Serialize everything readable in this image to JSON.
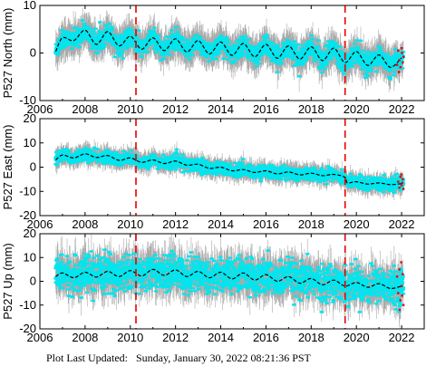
{
  "footer": {
    "label": "Plot Last Updated:",
    "timestamp": "Sunday, January 30, 2022 08:21:36 PST"
  },
  "colors": {
    "errorbar": "#aaaaaa",
    "data": "#00e5ee",
    "model": "#000000",
    "event_line": "#e60000",
    "recent_points": "#e60000"
  },
  "chart_data": [
    {
      "type": "scatter",
      "station": "P527",
      "component": "North",
      "ylabel": "P527 North (mm)",
      "xlim": [
        2006,
        2023
      ],
      "ylim": [
        -10,
        10
      ],
      "x_ticks": [
        2006,
        2008,
        2010,
        2012,
        2014,
        2016,
        2018,
        2020,
        2022
      ],
      "y_ticks": [
        -10,
        0,
        10
      ],
      "x_tick_labels": [
        "2006",
        "2008",
        "2010",
        "2012",
        "2014",
        "2016",
        "2018",
        "2020",
        "2022"
      ],
      "y_tick_labels": [
        "-10",
        "0",
        "10"
      ],
      "data_start": 2006.7,
      "data_end": 2022.08,
      "event_lines": [
        2010.25,
        2019.5
      ],
      "model_points": [
        [
          2006.7,
          0.3
        ],
        [
          2007.0,
          3.2
        ],
        [
          2007.5,
          2.6
        ],
        [
          2008.0,
          4.8
        ],
        [
          2008.5,
          1.8
        ],
        [
          2009.0,
          4.5
        ],
        [
          2009.5,
          1.5
        ],
        [
          2010.0,
          3.5
        ],
        [
          2010.5,
          0.8
        ],
        [
          2011.0,
          3.2
        ],
        [
          2011.5,
          0.5
        ],
        [
          2012.0,
          3.0
        ],
        [
          2012.5,
          0.2
        ],
        [
          2013.0,
          2.6
        ],
        [
          2013.5,
          -0.2
        ],
        [
          2014.0,
          2.3
        ],
        [
          2014.5,
          -0.5
        ],
        [
          2015.0,
          2.0
        ],
        [
          2015.5,
          -0.8
        ],
        [
          2016.0,
          1.8
        ],
        [
          2016.5,
          -1.1
        ],
        [
          2017.0,
          1.5
        ],
        [
          2017.5,
          -1.3
        ],
        [
          2018.0,
          1.3
        ],
        [
          2018.5,
          -1.6
        ],
        [
          2019.0,
          1.0
        ],
        [
          2019.5,
          -2.0
        ],
        [
          2020.0,
          0.3
        ],
        [
          2020.5,
          -2.6
        ],
        [
          2021.0,
          -0.4
        ],
        [
          2021.5,
          -3.0
        ],
        [
          2022.0,
          -1.0
        ]
      ],
      "scatter_sd": 1.0,
      "error_sd": 2.6,
      "recent_points": [
        [
          2021.8,
          -2.5
        ],
        [
          2021.85,
          0.5
        ],
        [
          2021.9,
          -1.5
        ],
        [
          2021.95,
          -3.0
        ],
        [
          2022.0,
          1.0
        ],
        [
          2022.05,
          -2.0
        ],
        [
          2022.08,
          -0.8
        ],
        [
          2021.88,
          -4.0
        ],
        [
          2022.02,
          0.0
        ]
      ]
    },
    {
      "type": "scatter",
      "station": "P527",
      "component": "East",
      "ylabel": "P527 East (mm)",
      "xlim": [
        2006,
        2023
      ],
      "ylim": [
        -20,
        20
      ],
      "x_ticks": [
        2006,
        2008,
        2010,
        2012,
        2014,
        2016,
        2018,
        2020,
        2022
      ],
      "y_ticks": [
        -20,
        -10,
        0,
        10,
        20
      ],
      "x_tick_labels": [
        "2006",
        "2008",
        "2010",
        "2012",
        "2014",
        "2016",
        "2018",
        "2020",
        "2022"
      ],
      "y_tick_labels": [
        "-20",
        "-10",
        "0",
        "10",
        "20"
      ],
      "data_start": 2006.7,
      "data_end": 2022.08,
      "event_lines": [
        2010.25,
        2019.5
      ],
      "model_points": [
        [
          2006.7,
          3.0
        ],
        [
          2007.0,
          5.0
        ],
        [
          2007.5,
          3.8
        ],
        [
          2008.0,
          5.5
        ],
        [
          2008.5,
          4.0
        ],
        [
          2009.0,
          4.8
        ],
        [
          2009.5,
          2.8
        ],
        [
          2010.0,
          3.8
        ],
        [
          2010.5,
          2.0
        ],
        [
          2011.0,
          3.0
        ],
        [
          2011.5,
          1.5
        ],
        [
          2012.0,
          2.5
        ],
        [
          2012.5,
          0.8
        ],
        [
          2013.0,
          1.2
        ],
        [
          2013.5,
          -0.5
        ],
        [
          2014.0,
          0.0
        ],
        [
          2014.5,
          -1.5
        ],
        [
          2015.0,
          -1.0
        ],
        [
          2015.5,
          -2.2
        ],
        [
          2016.0,
          -1.5
        ],
        [
          2016.5,
          -2.8
        ],
        [
          2017.0,
          -2.0
        ],
        [
          2017.5,
          -3.2
        ],
        [
          2018.0,
          -2.5
        ],
        [
          2018.5,
          -3.5
        ],
        [
          2019.0,
          -3.0
        ],
        [
          2019.5,
          -4.2
        ],
        [
          2019.6,
          -6.5
        ],
        [
          2020.0,
          -6.0
        ],
        [
          2020.5,
          -7.0
        ],
        [
          2021.0,
          -6.5
        ],
        [
          2021.5,
          -7.2
        ],
        [
          2022.0,
          -6.8
        ]
      ],
      "scatter_sd": 1.3,
      "error_sd": 2.8,
      "recent_points": [
        [
          2021.85,
          -6.0
        ],
        [
          2021.9,
          -8.5
        ],
        [
          2021.95,
          -4.0
        ],
        [
          2022.0,
          -7.5
        ],
        [
          2022.05,
          -5.0
        ],
        [
          2022.08,
          -9.0
        ],
        [
          2021.98,
          -3.0
        ],
        [
          2022.03,
          -6.5
        ]
      ]
    },
    {
      "type": "scatter",
      "station": "P527",
      "component": "Up",
      "ylabel": "P527 Up (mm)",
      "xlim": [
        2006,
        2023
      ],
      "ylim": [
        -20,
        20
      ],
      "x_ticks": [
        2006,
        2008,
        2010,
        2012,
        2014,
        2016,
        2018,
        2020,
        2022
      ],
      "y_ticks": [
        -20,
        -10,
        0,
        10,
        20
      ],
      "x_tick_labels": [
        "2006",
        "2008",
        "2010",
        "2012",
        "2014",
        "2016",
        "2018",
        "2020",
        "2022"
      ],
      "y_tick_labels": [
        "-20",
        "-10",
        "0",
        "10",
        "20"
      ],
      "data_start": 2006.7,
      "data_end": 2022.08,
      "event_lines": [
        2010.25,
        2019.5
      ],
      "model_points": [
        [
          2006.7,
          2.0
        ],
        [
          2007.0,
          3.5
        ],
        [
          2007.5,
          1.5
        ],
        [
          2008.0,
          3.8
        ],
        [
          2008.5,
          1.8
        ],
        [
          2009.0,
          4.2
        ],
        [
          2009.5,
          2.0
        ],
        [
          2010.0,
          4.5
        ],
        [
          2010.5,
          2.2
        ],
        [
          2011.0,
          5.0
        ],
        [
          2011.5,
          2.5
        ],
        [
          2012.0,
          4.8
        ],
        [
          2012.5,
          2.0
        ],
        [
          2013.0,
          4.2
        ],
        [
          2013.5,
          1.5
        ],
        [
          2014.0,
          3.8
        ],
        [
          2014.5,
          1.0
        ],
        [
          2015.0,
          3.5
        ],
        [
          2015.5,
          0.5
        ],
        [
          2016.0,
          2.8
        ],
        [
          2016.5,
          0.0
        ],
        [
          2017.0,
          2.0
        ],
        [
          2017.5,
          -0.8
        ],
        [
          2018.0,
          1.2
        ],
        [
          2018.5,
          -1.5
        ],
        [
          2019.0,
          0.5
        ],
        [
          2019.5,
          -2.0
        ],
        [
          2020.0,
          -0.5
        ],
        [
          2020.5,
          -2.5
        ],
        [
          2021.0,
          -1.0
        ],
        [
          2021.5,
          -3.0
        ],
        [
          2022.0,
          -2.0
        ]
      ],
      "scatter_sd": 3.5,
      "error_sd": 6.0,
      "recent_points": [
        [
          2021.8,
          2.0
        ],
        [
          2021.85,
          -5.0
        ],
        [
          2021.9,
          5.0
        ],
        [
          2021.95,
          -8.0
        ],
        [
          2022.0,
          -2.0
        ],
        [
          2022.05,
          3.0
        ],
        [
          2022.08,
          -10.0
        ],
        [
          2021.92,
          -12.0
        ],
        [
          2022.02,
          -6.0
        ],
        [
          2021.98,
          8.0
        ]
      ]
    }
  ]
}
